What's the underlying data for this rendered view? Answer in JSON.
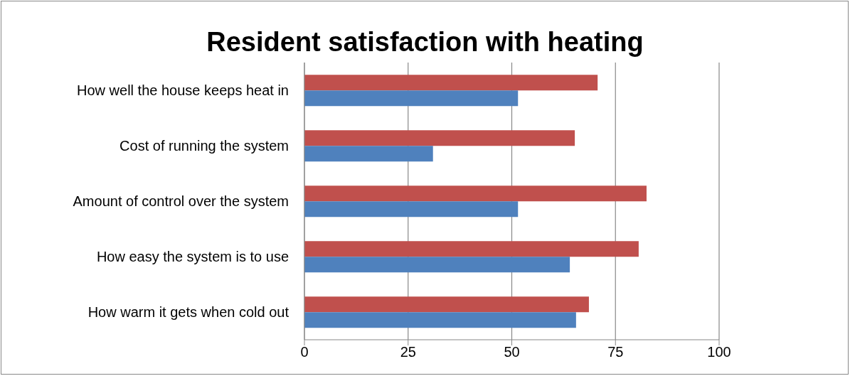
{
  "chart_data": {
    "type": "bar",
    "orientation": "horizontal",
    "title": "Resident satisfaction with heating",
    "categories": [
      "How well the house keeps heat in",
      "Cost of running the system",
      "Amount of control over the system",
      "How easy the system is to use",
      "How warm it gets when cold out"
    ],
    "series": [
      {
        "color": "#c0504d",
        "values": [
          70.7,
          65.2,
          82.5,
          80.6,
          68.6
        ]
      },
      {
        "color": "#4f81bd",
        "values": [
          51.5,
          31,
          51.5,
          64,
          65.5
        ]
      }
    ],
    "xlim": [
      0,
      100
    ],
    "xticks": [
      0,
      25,
      50,
      75,
      100
    ],
    "grid": "x",
    "legend": false
  }
}
